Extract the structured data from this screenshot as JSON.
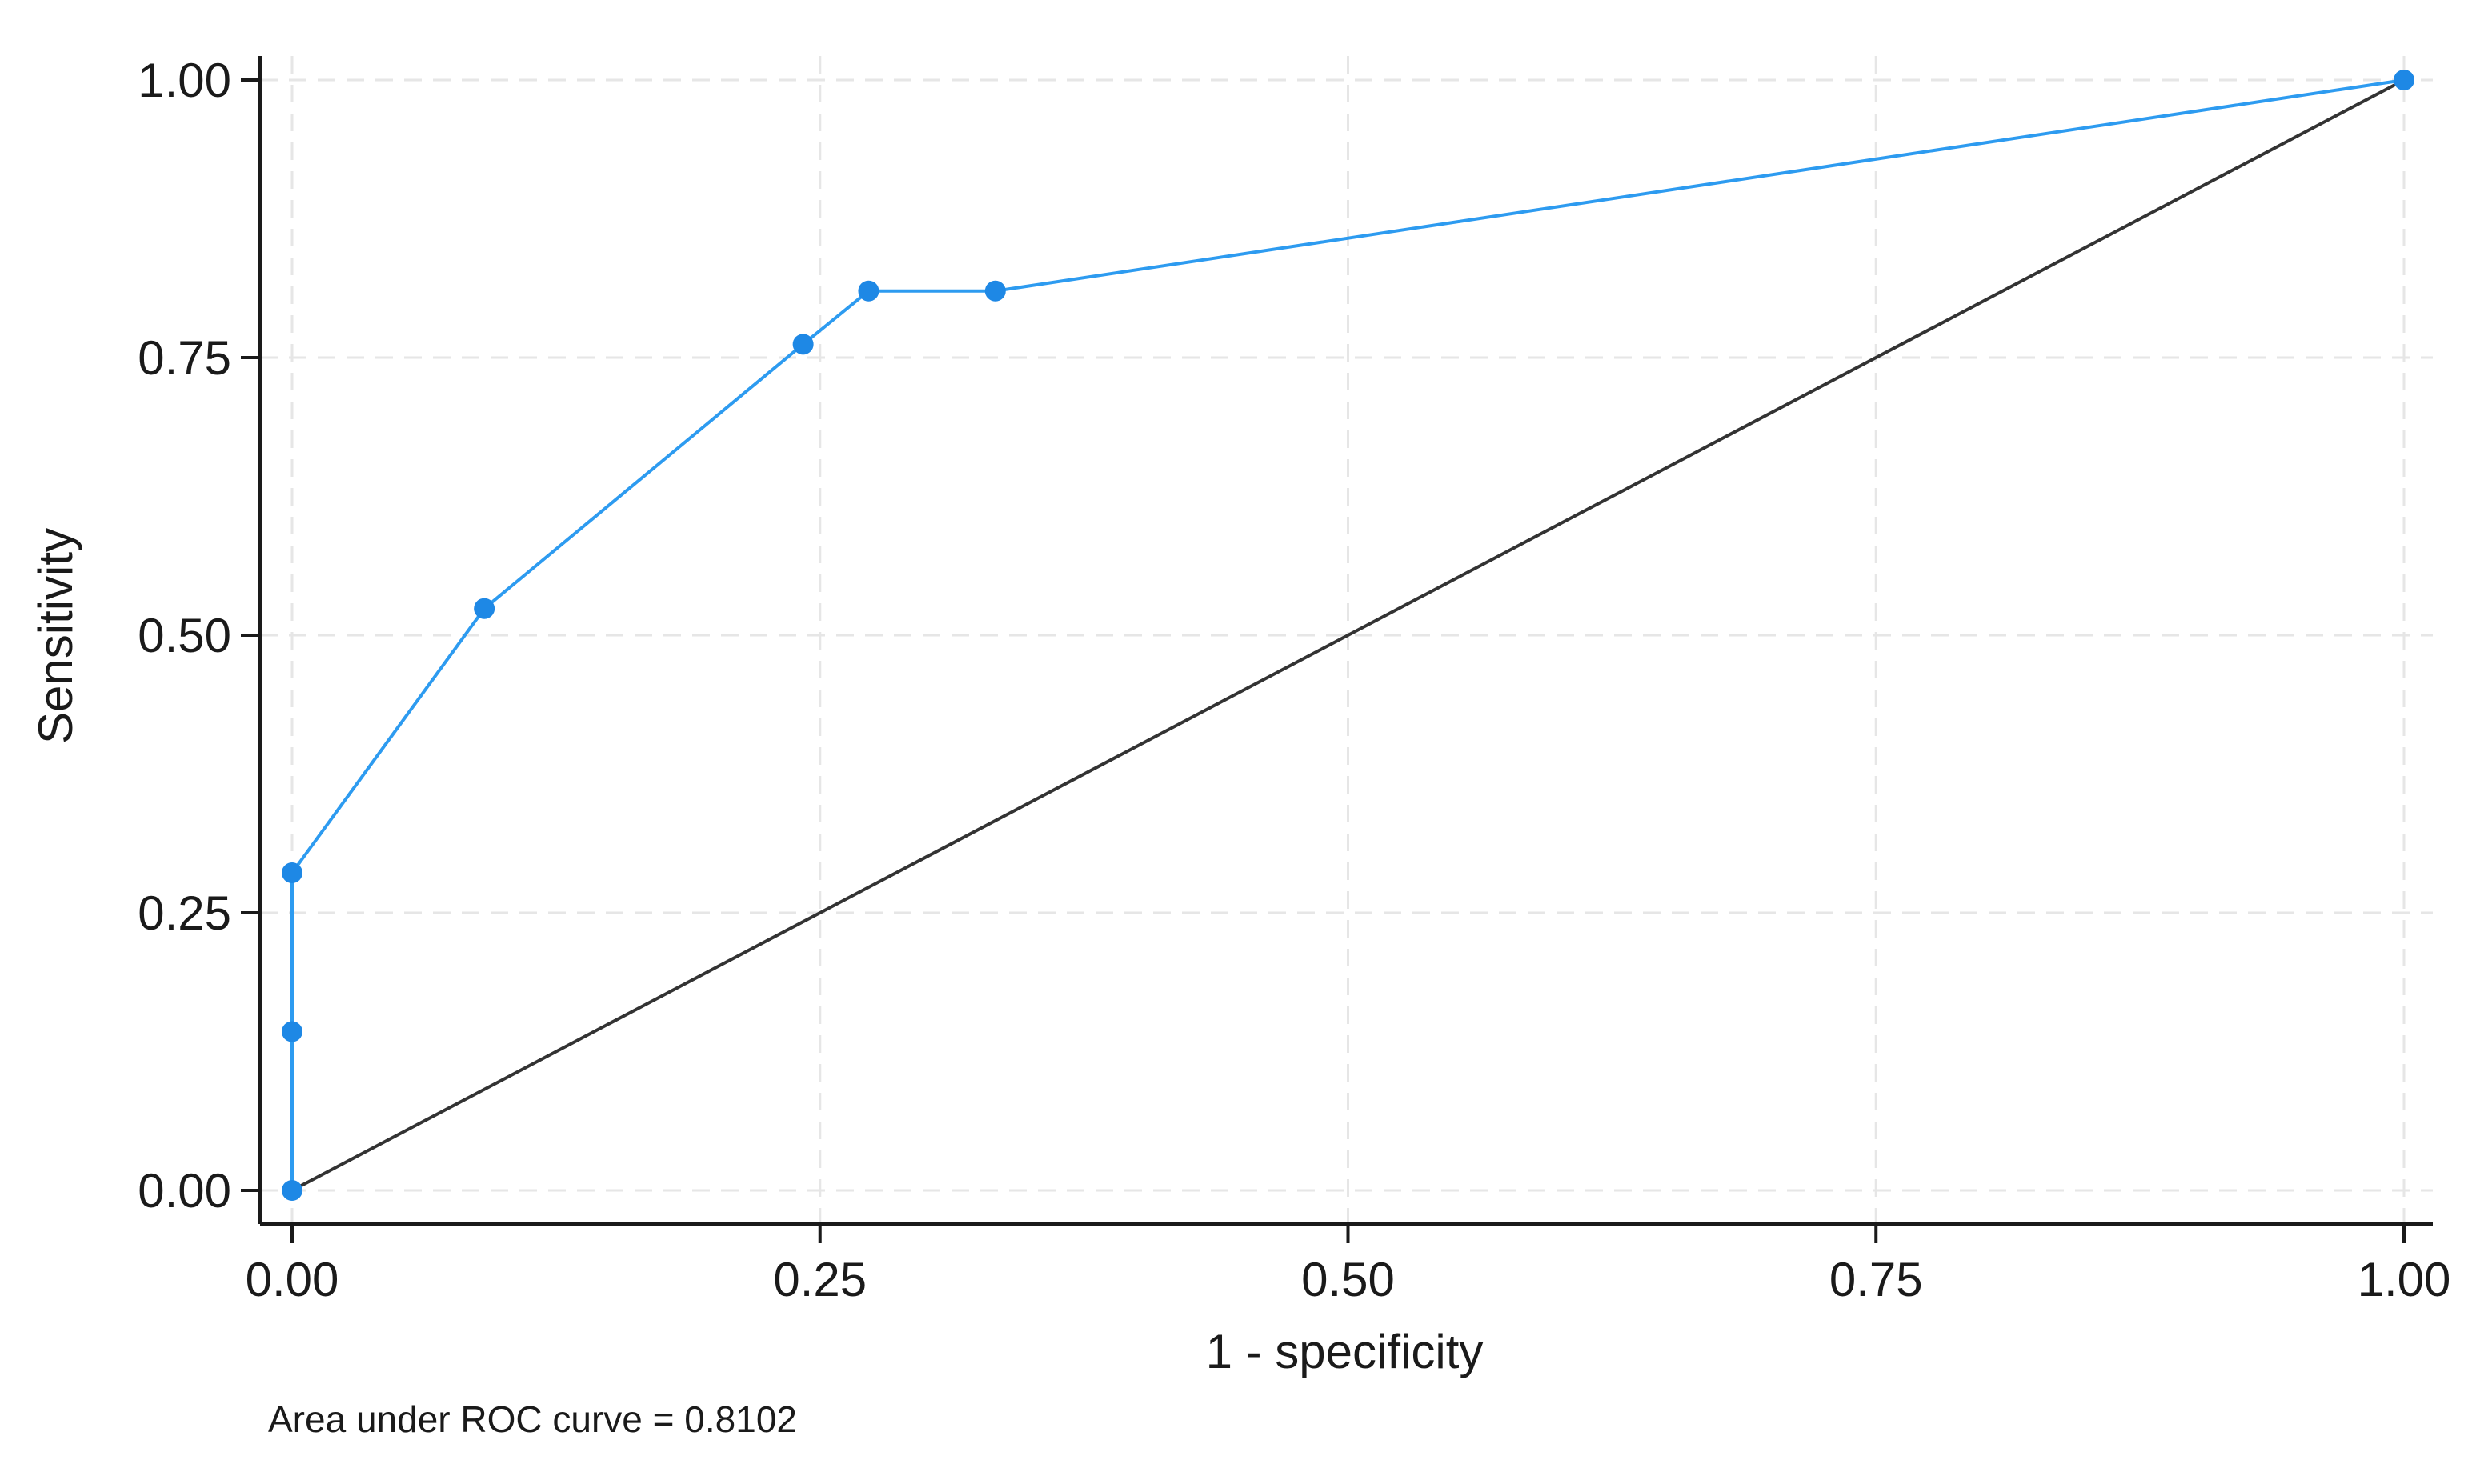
{
  "chart_data": {
    "type": "line",
    "title": "",
    "xlabel": "1 - specificity",
    "ylabel": "Sensitivity",
    "xlim": [
      0,
      1
    ],
    "ylim": [
      0,
      1
    ],
    "x_ticks": [
      "0.00",
      "0.25",
      "0.50",
      "0.75",
      "1.00"
    ],
    "y_ticks": [
      "0.00",
      "0.25",
      "0.50",
      "0.75",
      "1.00"
    ],
    "grid": true,
    "note": "Area under ROC curve = 0.8102",
    "series": [
      {
        "color": "#2d9bf0",
        "marker_color": "#1e88e5",
        "points": [
          {
            "x": 0.0,
            "y": 0.0
          },
          {
            "x": 0.0,
            "y": 0.143
          },
          {
            "x": 0.0,
            "y": 0.286
          },
          {
            "x": 0.091,
            "y": 0.524
          },
          {
            "x": 0.242,
            "y": 0.762
          },
          {
            "x": 0.273,
            "y": 0.81
          },
          {
            "x": 0.333,
            "y": 0.81
          },
          {
            "x": 1.0,
            "y": 1.0
          }
        ]
      },
      {
        "color": "#333333",
        "points": [
          {
            "x": 0.0,
            "y": 0.0
          },
          {
            "x": 1.0,
            "y": 1.0
          }
        ]
      }
    ]
  }
}
